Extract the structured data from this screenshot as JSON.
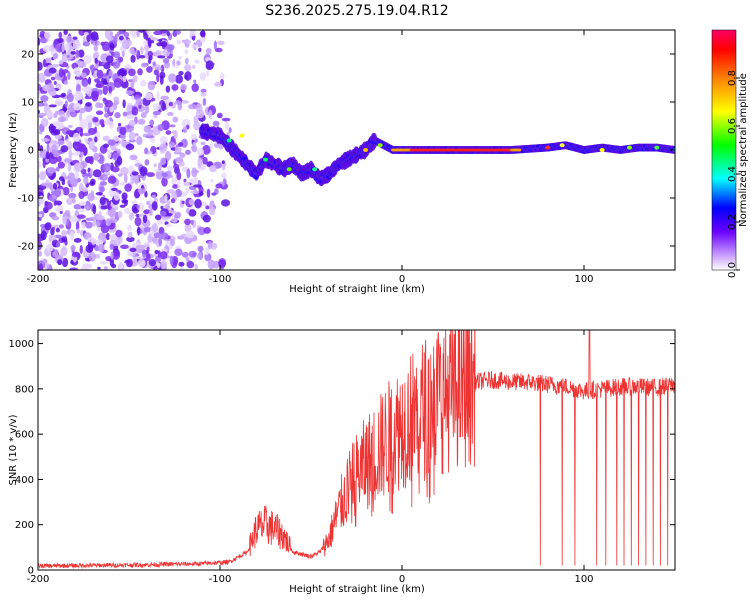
{
  "title": "S236.2025.275.19.04.R12",
  "chart_data": [
    {
      "type": "heatmap",
      "xlabel": "Height of straight line (km)",
      "ylabel": "Frequency (Hz)",
      "xlim": [
        -200,
        150
      ],
      "ylim": [
        -25,
        25
      ],
      "x_ticks": [
        -200,
        -100,
        0,
        100
      ],
      "y_ticks": [
        -20,
        -10,
        0,
        10,
        20
      ],
      "colorbar": {
        "label": "Normalized spectral amplitude",
        "range": [
          0,
          1
        ],
        "ticks": [
          "0.0",
          "0.2",
          "0.4",
          "0.6",
          "0.8"
        ],
        "tick_values": [
          0,
          0.2,
          0.4,
          0.6,
          0.8
        ]
      },
      "ridge": {
        "x": [
          -110,
          -100,
          -95,
          -90,
          -85,
          -80,
          -75,
          -70,
          -65,
          -60,
          -55,
          -50,
          -45,
          -40,
          -35,
          -30,
          -25,
          -20,
          -15,
          -10,
          -5,
          0,
          20,
          40,
          60,
          80,
          90,
          100,
          110,
          120,
          130,
          140,
          150
        ],
        "freq": [
          4,
          3,
          1,
          -1,
          -3,
          -5,
          -2,
          -3,
          -4,
          -3,
          -5,
          -4,
          -6,
          -5,
          -3,
          -2,
          -1,
          0,
          2,
          1,
          0,
          0,
          0,
          0,
          0,
          0.5,
          1,
          0,
          0.5,
          0,
          0.5,
          0.5,
          0
        ]
      },
      "noise_region_km": [
        -200,
        -92
      ]
    },
    {
      "type": "line",
      "xlabel": "Height of straight line (km)",
      "ylabel": "SNR (10 * v/v)",
      "xlim": [
        -200,
        150
      ],
      "ylim": [
        0,
        1060
      ],
      "x_ticks": [
        -200,
        -100,
        0,
        100
      ],
      "y_ticks": [
        0,
        200,
        400,
        600,
        800,
        1000
      ],
      "color": "#ee3333",
      "envelope": {
        "x": [
          -200,
          -150,
          -110,
          -95,
          -85,
          -80,
          -75,
          -70,
          -65,
          -60,
          -50,
          -45,
          -40,
          -35,
          -30,
          -25,
          -20,
          -15,
          -10,
          -5,
          0,
          10,
          20,
          30,
          40,
          50,
          60,
          70,
          80,
          90,
          100,
          110,
          120,
          130,
          140,
          150
        ],
        "snr": [
          18,
          22,
          28,
          35,
          80,
          180,
          200,
          180,
          150,
          80,
          60,
          80,
          140,
          260,
          350,
          420,
          470,
          510,
          560,
          600,
          640,
          700,
          760,
          800,
          830,
          840,
          830,
          830,
          820,
          810,
          790,
          800,
          810,
          810,
          805,
          820
        ]
      },
      "spike": {
        "x": 103,
        "snr": 1060
      },
      "dropouts_km": [
        76,
        88,
        95,
        107,
        112,
        118,
        122,
        126,
        130,
        134,
        138,
        142,
        146
      ]
    }
  ]
}
